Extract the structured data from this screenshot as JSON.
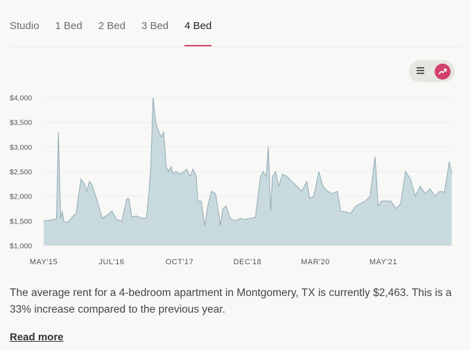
{
  "tabs": [
    {
      "label": "Studio",
      "active": false
    },
    {
      "label": "1 Bed",
      "active": false
    },
    {
      "label": "2 Bed",
      "active": false
    },
    {
      "label": "4 Bed",
      "active": true
    }
  ],
  "tabs_extra": {
    "label": "3 Bed"
  },
  "view_toggle": {
    "list_icon": "list-icon",
    "chart_icon": "trend-chart-icon",
    "selected": "chart",
    "accent": "#d1416a"
  },
  "chart_data": {
    "type": "area",
    "fill_color": "#c9dadf",
    "line_color": "#8fa9b4",
    "ylim": [
      1000,
      4000
    ],
    "y_ticks": [
      "$1,000",
      "$1,500",
      "$2,000",
      "$2,500",
      "$3,000",
      "$3,500",
      "$4,000"
    ],
    "x_ticks": [
      "MAY'15",
      "JUL'16",
      "OCT'17",
      "DEC'18",
      "MAR'20",
      "MAY'21"
    ],
    "xlim": [
      "2015-05",
      "2022-06"
    ],
    "series": [
      {
        "points": [
          [
            "2015-05-01",
            1500
          ],
          [
            "2015-06-01",
            1510
          ],
          [
            "2015-07-01",
            1530
          ],
          [
            "2015-07-20",
            1540
          ],
          [
            "2015-08-01",
            3300
          ],
          [
            "2015-08-15",
            1550
          ],
          [
            "2015-08-25",
            1700
          ],
          [
            "2015-09-05",
            1470
          ],
          [
            "2015-10-01",
            1480
          ],
          [
            "2015-11-01",
            1600
          ],
          [
            "2015-11-20",
            1650
          ],
          [
            "2015-12-20",
            2350
          ],
          [
            "2016-01-10",
            2250
          ],
          [
            "2016-01-25",
            2100
          ],
          [
            "2016-02-10",
            2300
          ],
          [
            "2016-02-25",
            2250
          ],
          [
            "2016-04-01",
            1900
          ],
          [
            "2016-05-01",
            1550
          ],
          [
            "2016-06-01",
            1620
          ],
          [
            "2016-07-01",
            1700
          ],
          [
            "2016-08-01",
            1520
          ],
          [
            "2016-09-01",
            1500
          ],
          [
            "2016-10-01",
            1950
          ],
          [
            "2016-10-15",
            1950
          ],
          [
            "2016-11-01",
            1580
          ],
          [
            "2016-12-01",
            1600
          ],
          [
            "2017-01-01",
            1560
          ],
          [
            "2017-02-01",
            1550
          ],
          [
            "2017-02-15",
            2000
          ],
          [
            "2017-03-01",
            2600
          ],
          [
            "2017-03-15",
            4000
          ],
          [
            "2017-04-01",
            3500
          ],
          [
            "2017-04-20",
            3300
          ],
          [
            "2017-05-05",
            3200
          ],
          [
            "2017-05-20",
            3300
          ],
          [
            "2017-06-05",
            2600
          ],
          [
            "2017-06-20",
            2500
          ],
          [
            "2017-07-05",
            2600
          ],
          [
            "2017-07-20",
            2450
          ],
          [
            "2017-08-05",
            2500
          ],
          [
            "2017-09-01",
            2450
          ],
          [
            "2017-09-25",
            2500
          ],
          [
            "2017-10-10",
            2550
          ],
          [
            "2017-11-01",
            2400
          ],
          [
            "2017-11-20",
            2550
          ],
          [
            "2017-12-10",
            2400
          ],
          [
            "2017-12-20",
            1900
          ],
          [
            "2018-01-10",
            1900
          ],
          [
            "2018-02-01",
            1400
          ],
          [
            "2018-02-20",
            1800
          ],
          [
            "2018-03-15",
            2100
          ],
          [
            "2018-04-10",
            2050
          ],
          [
            "2018-05-01",
            1600
          ],
          [
            "2018-05-10",
            1400
          ],
          [
            "2018-05-25",
            1750
          ],
          [
            "2018-06-15",
            1800
          ],
          [
            "2018-07-10",
            1550
          ],
          [
            "2018-08-10",
            1500
          ],
          [
            "2018-09-10",
            1550
          ],
          [
            "2018-10-10",
            1530
          ],
          [
            "2018-11-10",
            1550
          ],
          [
            "2018-12-15",
            1570
          ],
          [
            "2019-01-15",
            2400
          ],
          [
            "2019-02-01",
            2500
          ],
          [
            "2019-02-20",
            2400
          ],
          [
            "2019-03-05",
            3000
          ],
          [
            "2019-03-20",
            1700
          ],
          [
            "2019-04-01",
            2400
          ],
          [
            "2019-04-20",
            2500
          ],
          [
            "2019-05-10",
            2200
          ],
          [
            "2019-06-01",
            2450
          ],
          [
            "2019-07-01",
            2400
          ],
          [
            "2019-08-01",
            2300
          ],
          [
            "2019-09-01",
            2200
          ],
          [
            "2019-10-01",
            2100
          ],
          [
            "2019-11-01",
            2300
          ],
          [
            "2019-11-20",
            1950
          ],
          [
            "2019-12-15",
            2000
          ],
          [
            "2020-01-15",
            2500
          ],
          [
            "2020-02-10",
            2200
          ],
          [
            "2020-03-10",
            2100
          ],
          [
            "2020-04-10",
            2050
          ],
          [
            "2020-05-10",
            2100
          ],
          [
            "2020-06-01",
            1700
          ],
          [
            "2020-07-01",
            1680
          ],
          [
            "2020-08-01",
            1650
          ],
          [
            "2020-09-01",
            1800
          ],
          [
            "2020-10-01",
            1850
          ],
          [
            "2020-11-01",
            1900
          ],
          [
            "2020-12-01",
            2000
          ],
          [
            "2021-01-01",
            2800
          ],
          [
            "2021-01-20",
            1800
          ],
          [
            "2021-02-10",
            1900
          ],
          [
            "2021-03-10",
            1900
          ],
          [
            "2021-04-10",
            1900
          ],
          [
            "2021-05-10",
            1750
          ],
          [
            "2021-06-10",
            1850
          ],
          [
            "2021-07-10",
            2500
          ],
          [
            "2021-08-10",
            2350
          ],
          [
            "2021-09-10",
            2000
          ],
          [
            "2021-10-10",
            2200
          ],
          [
            "2021-11-10",
            2050
          ],
          [
            "2021-12-10",
            2150
          ],
          [
            "2022-01-10",
            2000
          ],
          [
            "2022-02-10",
            2100
          ],
          [
            "2022-03-10",
            2080
          ],
          [
            "2022-04-10",
            2700
          ],
          [
            "2022-04-25",
            2450
          ]
        ]
      }
    ]
  },
  "summary": {
    "text": "The average rent for a 4-bedroom apartment in Montgomery, TX is currently $2,463. This is a 33% increase compared to the previous year."
  },
  "read_more": {
    "label": "Read more"
  }
}
